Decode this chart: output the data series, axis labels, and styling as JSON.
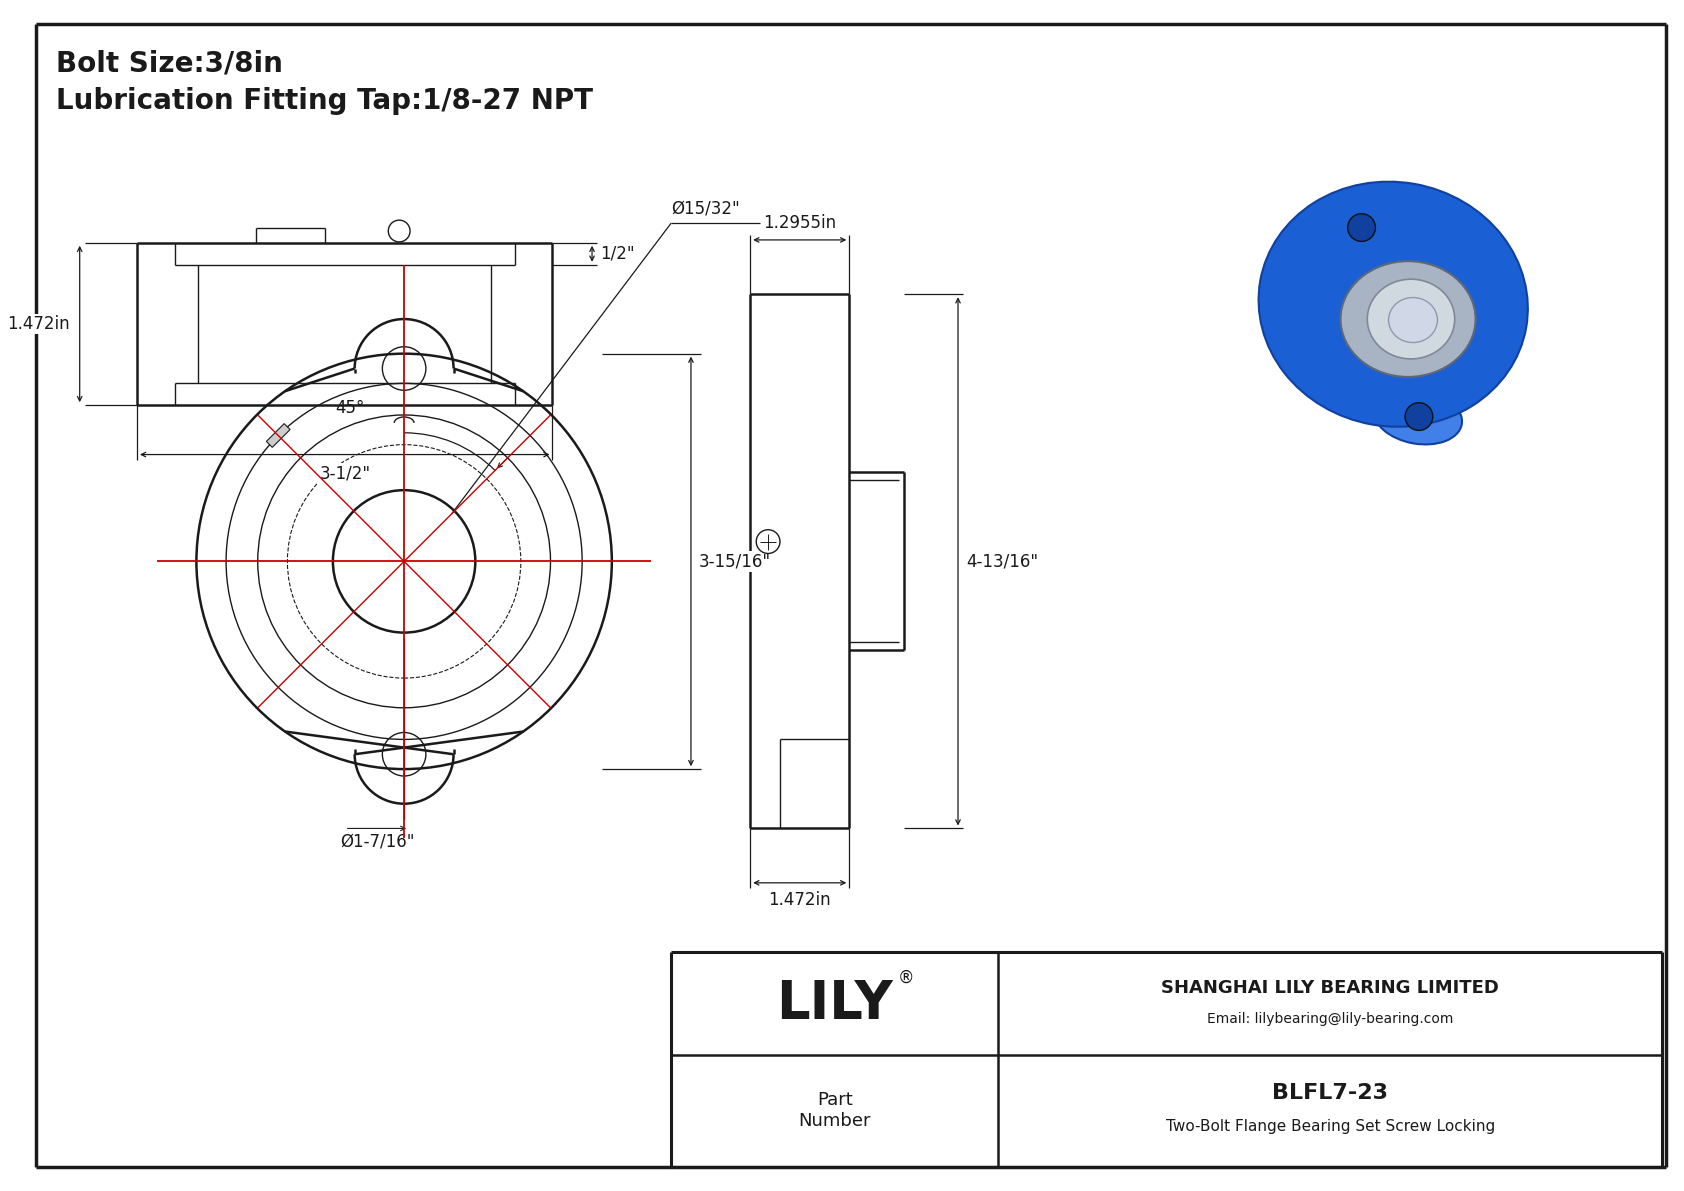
{
  "bg_color": "#ffffff",
  "line_color": "#1a1a1a",
  "red_color": "#cc0000",
  "title1": "Bolt Size:3/8in",
  "title2": "Lubrication Fitting Tap:1/8-27 NPT",
  "company": "SHANGHAI LILY BEARING LIMITED",
  "email": "Email: lilybearing@lily-bearing.com",
  "part_label": "Part\nNumber",
  "part_number": "BLFL7-23",
  "part_desc": "Two-Bolt Flange Bearing Set Screw Locking",
  "dim_bore": "Ø15/32\"",
  "dim_height": "3-15/16\"",
  "dim_bolt_circle": "Ø1-7/16\"",
  "dim_angle": "45°",
  "dim_width_top": "1.2955in",
  "dim_height_side": "4-13/16\"",
  "dim_depth": "1.472in",
  "dim_half": "1/2\"",
  "dim_bottom_width": "3-1/2\"",
  "dim_left_height": "1.472in",
  "lily_font_size": 38,
  "title_font_size": 20,
  "dim_font_size": 12
}
